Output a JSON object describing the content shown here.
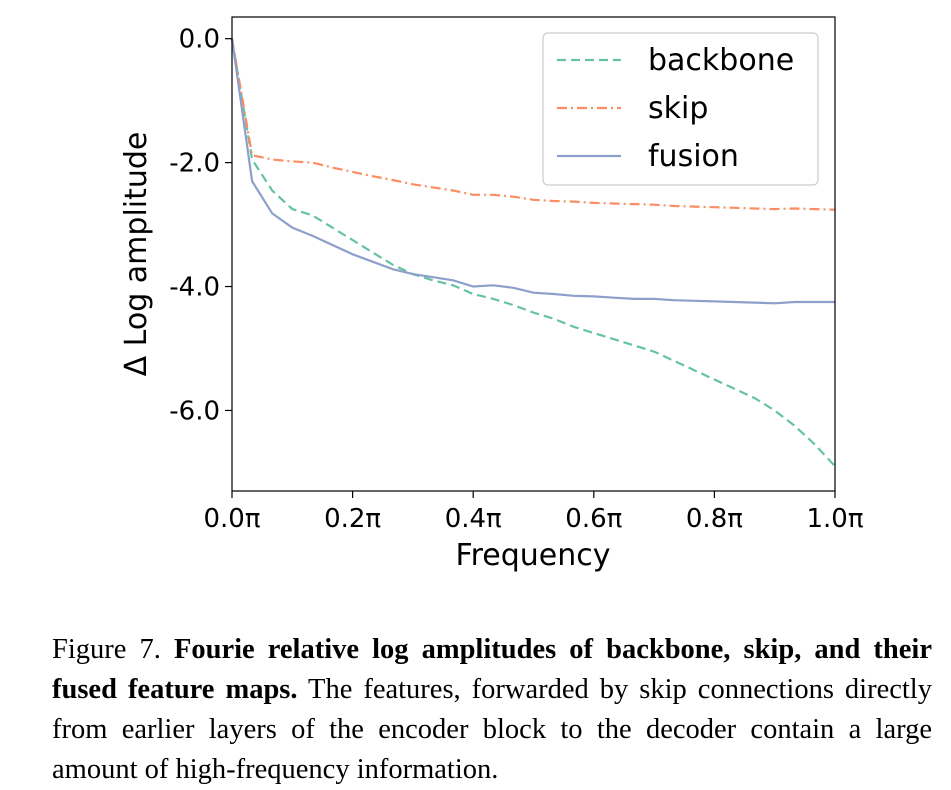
{
  "chart_data": {
    "type": "line",
    "xlabel": "Frequency",
    "ylabel": "Δ Log amplitude",
    "xlim": [
      0.0,
      1.0
    ],
    "ylim": [
      -7.3,
      0.35
    ],
    "xticks": [
      0.0,
      0.2,
      0.4,
      0.6,
      0.8,
      1.0
    ],
    "xtick_labels": [
      "0.0π",
      "0.2π",
      "0.4π",
      "0.6π",
      "0.8π",
      "1.0π"
    ],
    "yticks": [
      0.0,
      -2.0,
      -4.0,
      -6.0
    ],
    "ytick_labels": [
      "0.0",
      "-2.0",
      "-4.0",
      "-6.0"
    ],
    "grid": false,
    "legend_position": "top-right",
    "x": [
      0.0,
      0.0333,
      0.0667,
      0.1,
      0.1333,
      0.1667,
      0.2,
      0.2333,
      0.2667,
      0.3,
      0.3333,
      0.3667,
      0.4,
      0.4333,
      0.4667,
      0.5,
      0.5333,
      0.5667,
      0.6,
      0.6333,
      0.6667,
      0.7,
      0.7333,
      0.7667,
      0.8,
      0.8333,
      0.8667,
      0.9,
      0.9333,
      0.9667,
      1.0
    ],
    "series": [
      {
        "name": "backbone",
        "color": "#66c2a5",
        "dash": "dashed",
        "values": [
          0.0,
          -1.95,
          -2.45,
          -2.75,
          -2.85,
          -3.05,
          -3.25,
          -3.45,
          -3.65,
          -3.8,
          -3.9,
          -3.98,
          -4.12,
          -4.2,
          -4.3,
          -4.42,
          -4.52,
          -4.65,
          -4.75,
          -4.85,
          -4.95,
          -5.05,
          -5.2,
          -5.35,
          -5.5,
          -5.65,
          -5.8,
          -6.0,
          -6.25,
          -6.55,
          -6.9
        ]
      },
      {
        "name": "skip",
        "color": "#fc8d62",
        "dash": "dashdot",
        "values": [
          0.0,
          -1.88,
          -1.95,
          -1.98,
          -2.0,
          -2.08,
          -2.15,
          -2.22,
          -2.28,
          -2.35,
          -2.4,
          -2.45,
          -2.52,
          -2.52,
          -2.55,
          -2.6,
          -2.62,
          -2.63,
          -2.65,
          -2.66,
          -2.67,
          -2.68,
          -2.7,
          -2.71,
          -2.72,
          -2.73,
          -2.74,
          -2.75,
          -2.74,
          -2.75,
          -2.76
        ]
      },
      {
        "name": "fusion",
        "color": "#8da0cb",
        "dash": "solid",
        "values": [
          0.0,
          -2.3,
          -2.82,
          -3.05,
          -3.18,
          -3.33,
          -3.48,
          -3.6,
          -3.72,
          -3.8,
          -3.85,
          -3.9,
          -4.0,
          -3.98,
          -4.02,
          -4.1,
          -4.12,
          -4.15,
          -4.16,
          -4.18,
          -4.2,
          -4.2,
          -4.22,
          -4.23,
          -4.24,
          -4.25,
          -4.26,
          -4.27,
          -4.25,
          -4.25,
          -4.25
        ]
      }
    ]
  },
  "caption": {
    "label": "Figure 7.",
    "bold": "Fourie relative log amplitudes of backbone, skip, and their fused feature maps.",
    "text": "The features, forwarded by skip connections directly from earlier layers of the encoder block to the decoder contain a large amount of high-frequency information."
  }
}
